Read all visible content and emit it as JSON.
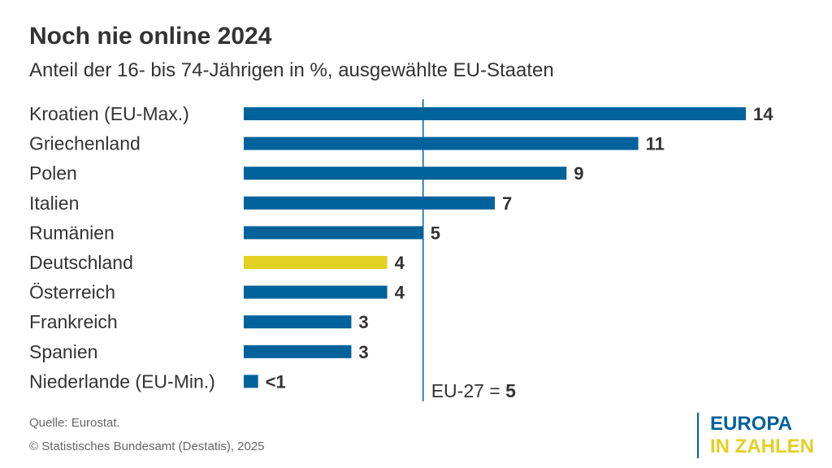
{
  "chart_data": {
    "type": "bar",
    "orientation": "horizontal",
    "title": "Noch nie online 2024",
    "subtitle": "Anteil der 16- bis 74-Jährigen in %, ausgewählte EU-Staaten",
    "categories": [
      "Kroatien (EU-Max.)",
      "Griechenland",
      "Polen",
      "Italien",
      "Rumänien",
      "Deutschland",
      "Österreich",
      "Frankreich",
      "Spanien",
      "Niederlande (EU-Min.)"
    ],
    "values": [
      14,
      11,
      9,
      7,
      5,
      4,
      4,
      3,
      3,
      0.4
    ],
    "data_labels": [
      "14",
      "11",
      "9",
      "7",
      "5",
      "4",
      "4",
      "3",
      "3",
      "<1"
    ],
    "highlight": "Deutschland",
    "reference_line": {
      "value": 5,
      "label": "EU-27 = ",
      "label_value": "5"
    },
    "xlim": [
      0,
      14
    ],
    "grid": false,
    "colors": {
      "bar": "#00629b",
      "highlight": "#e2d022",
      "line": "#00629b"
    }
  },
  "footer": {
    "source": "Quelle: Eurostat.",
    "copyright": "© Statistisches Bundesamt (Destatis), 2025"
  },
  "logo": {
    "line1": "EUROPA",
    "line2": "IN ZAHLEN"
  }
}
